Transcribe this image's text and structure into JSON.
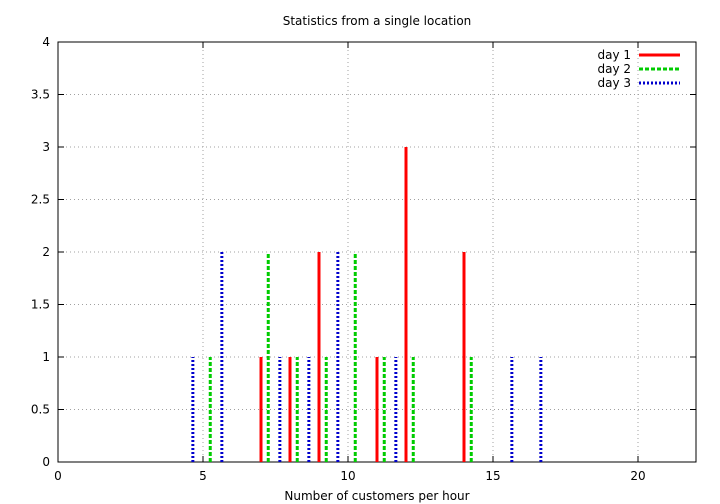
{
  "chart_data": {
    "type": "bar",
    "title": "Statistics from a single location",
    "xlabel": "Number of customers per hour",
    "ylabel": "",
    "xlim": [
      0,
      22
    ],
    "ylim": [
      0,
      4
    ],
    "xticks": [
      0,
      5,
      10,
      15,
      20
    ],
    "xtick_labels": [
      "0",
      "5",
      "10",
      "15",
      "20"
    ],
    "yticks": [
      0,
      0.5,
      1,
      1.5,
      2,
      2.5,
      3,
      3.5,
      4
    ],
    "ytick_labels": [
      "0",
      "0.5",
      "1",
      "1.5",
      "2",
      "2.5",
      "3",
      "3.5",
      "4"
    ],
    "grid": true,
    "legend_position": "top-right",
    "series": [
      {
        "name": "day 1",
        "color": "#ff0000",
        "style": "solid",
        "x": [
          7,
          8,
          9,
          11,
          12,
          14
        ],
        "values": [
          1,
          1,
          2,
          1,
          3,
          2
        ]
      },
      {
        "name": "day 2",
        "color": "#00cc00",
        "style": "dashed",
        "x": [
          5.25,
          7.25,
          8.25,
          9.25,
          10.25,
          11.25,
          12.25,
          14.25
        ],
        "values": [
          1,
          2,
          1,
          1,
          2,
          1,
          1,
          1
        ]
      },
      {
        "name": "day 3",
        "color": "#0000cc",
        "style": "dotted",
        "x": [
          4.65,
          5.65,
          7.65,
          8.65,
          9.65,
          11.65,
          15.65,
          16.65
        ],
        "values": [
          1,
          2,
          1,
          1,
          2,
          1,
          1,
          1
        ]
      }
    ]
  }
}
